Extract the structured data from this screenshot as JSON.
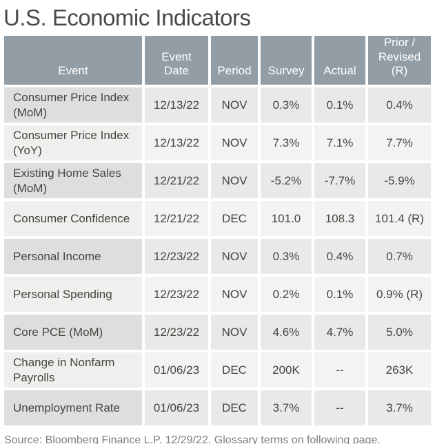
{
  "title": "U.S. Economic Indicators",
  "table": {
    "headers": [
      "Event",
      "Event\nDate",
      "Period",
      "Survey",
      "Actual",
      "Prior /\nRevised\n(R)"
    ],
    "rows": [
      {
        "event": "Consumer Price Index (MoM)",
        "date": "12/13/22",
        "period": "NOV",
        "survey": "0.3%",
        "actual": "0.1%",
        "prior": "0.4%"
      },
      {
        "event": "Consumer Price Index (YoY)",
        "date": "12/13/22",
        "period": "NOV",
        "survey": "7.3%",
        "actual": "7.1%",
        "prior": "7.7%"
      },
      {
        "event": "Existing Home Sales (MoM)",
        "date": "12/21/22",
        "period": "NOV",
        "survey": "-5.2%",
        "actual": "-7.7%",
        "prior": "-5.9%"
      },
      {
        "event": "Consumer Confidence",
        "date": "12/21/22",
        "period": "DEC",
        "survey": "101.0",
        "actual": "108.3",
        "prior": "101.4 (R)"
      },
      {
        "event": "Personal Income",
        "date": "12/23/22",
        "period": "NOV",
        "survey": "0.3%",
        "actual": "0.4%",
        "prior": "0.7%"
      },
      {
        "event": "Personal Spending",
        "date": "12/23/22",
        "period": "NOV",
        "survey": "0.2%",
        "actual": "0.1%",
        "prior": "0.9% (R)"
      },
      {
        "event": "Core PCE (MoM)",
        "date": "12/23/22",
        "period": "NOV",
        "survey": "4.6%",
        "actual": "4.7%",
        "prior": "5.0%"
      },
      {
        "event": "Change in Nonfarm Payrolls",
        "date": "01/06/23",
        "period": "DEC",
        "survey": "200K",
        "actual": "--",
        "prior": "263K"
      },
      {
        "event": "Unemployment Rate",
        "date": "01/06/23",
        "period": "DEC",
        "survey": "3.7%",
        "actual": "--",
        "prior": "3.7%"
      }
    ]
  },
  "footer": {
    "source": "Source: Bloomberg Finance L.P. 12/29/22. Glossary terms on following page."
  },
  "colors": {
    "header_bg": "#929da5",
    "header_text": "#ffffff",
    "row_odd_event_bg": "#dedede",
    "row_odd_data_bg": "#e9e9e9",
    "row_even_event_bg": "#efefee",
    "row_even_data_bg": "#f3f3f3",
    "body_text": "#45453f",
    "title_text": "#4a4a46",
    "source_text": "#7e7e7e"
  }
}
